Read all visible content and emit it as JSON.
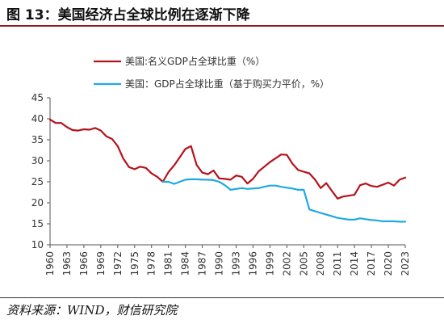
{
  "figure": {
    "heading": "图 13：美国经济占全球比例在逐渐下降",
    "source": "资料来源：WIND，财信研究院"
  },
  "colors": {
    "nominal": "#b5121b",
    "ppp": "#1fa9e1",
    "axis": "#555555",
    "title_rule": "#8b1a1a"
  },
  "chart_data": {
    "type": "line",
    "title": "",
    "xlabel": "",
    "ylabel": "",
    "ylim": [
      10,
      45
    ],
    "yticks": [
      10,
      15,
      20,
      25,
      30,
      35,
      40,
      45
    ],
    "xlim": [
      1960,
      2023
    ],
    "xticks": [
      1960,
      1963,
      1966,
      1969,
      1972,
      1975,
      1978,
      1981,
      1984,
      1987,
      1990,
      1993,
      1996,
      1999,
      2002,
      2005,
      2008,
      2011,
      2014,
      2017,
      2020,
      2023
    ],
    "grid": false,
    "legend_position": "top-center",
    "series": [
      {
        "name": "美国:名义GDP占全球比重（%）",
        "x": [
          1960,
          1961,
          1962,
          1963,
          1964,
          1965,
          1966,
          1967,
          1968,
          1969,
          1970,
          1971,
          1972,
          1973,
          1974,
          1975,
          1976,
          1977,
          1978,
          1979,
          1980,
          1981,
          1982,
          1983,
          1984,
          1985,
          1986,
          1987,
          1988,
          1989,
          1990,
          1991,
          1992,
          1993,
          1994,
          1995,
          1996,
          1997,
          1998,
          1999,
          2000,
          2001,
          2002,
          2003,
          2004,
          2005,
          2006,
          2007,
          2008,
          2009,
          2010,
          2011,
          2012,
          2013,
          2014,
          2015,
          2016,
          2017,
          2018,
          2019,
          2020,
          2021,
          2022,
          2023
        ],
        "values": [
          39.8,
          39.0,
          39.0,
          38.0,
          37.3,
          37.2,
          37.5,
          37.4,
          37.8,
          37.2,
          35.8,
          35.2,
          33.5,
          30.5,
          28.5,
          28.0,
          28.6,
          28.3,
          27.0,
          26.2,
          25.0,
          27.3,
          28.9,
          30.8,
          32.8,
          33.5,
          29.0,
          27.2,
          26.8,
          27.7,
          25.8,
          25.7,
          25.5,
          26.5,
          26.2,
          24.6,
          25.7,
          27.5,
          28.6,
          29.7,
          30.6,
          31.5,
          31.4,
          29.3,
          27.8,
          27.4,
          27.0,
          25.5,
          23.5,
          24.7,
          22.8,
          21.0,
          21.5,
          21.7,
          21.9,
          24.2,
          24.6,
          24.0,
          23.8,
          24.3,
          24.8,
          24.1,
          25.5,
          26.0
        ]
      },
      {
        "name": "美国：GDP占全球比重（基于购买力平价，%）",
        "x": [
          1980,
          1981,
          1982,
          1983,
          1984,
          1985,
          1986,
          1987,
          1988,
          1989,
          1990,
          1991,
          1992,
          1993,
          1994,
          1995,
          1996,
          1997,
          1998,
          1999,
          2000,
          2001,
          2002,
          2003,
          2004,
          2005,
          2006,
          2007,
          2008,
          2009,
          2010,
          2011,
          2012,
          2013,
          2014,
          2015,
          2016,
          2017,
          2018,
          2019,
          2020,
          2021,
          2022,
          2023
        ],
        "values": [
          25.0,
          25.0,
          24.5,
          25.0,
          25.5,
          25.6,
          25.6,
          25.5,
          25.5,
          25.4,
          25.0,
          24.2,
          23.1,
          23.3,
          23.5,
          23.3,
          23.4,
          23.5,
          23.8,
          24.1,
          24.1,
          23.8,
          23.6,
          23.4,
          23.1,
          23.1,
          18.4,
          18.0,
          17.6,
          17.2,
          16.8,
          16.4,
          16.2,
          16.0,
          16.0,
          16.3,
          16.1,
          15.9,
          15.8,
          15.6,
          15.6,
          15.6,
          15.5,
          15.5
        ]
      }
    ]
  }
}
